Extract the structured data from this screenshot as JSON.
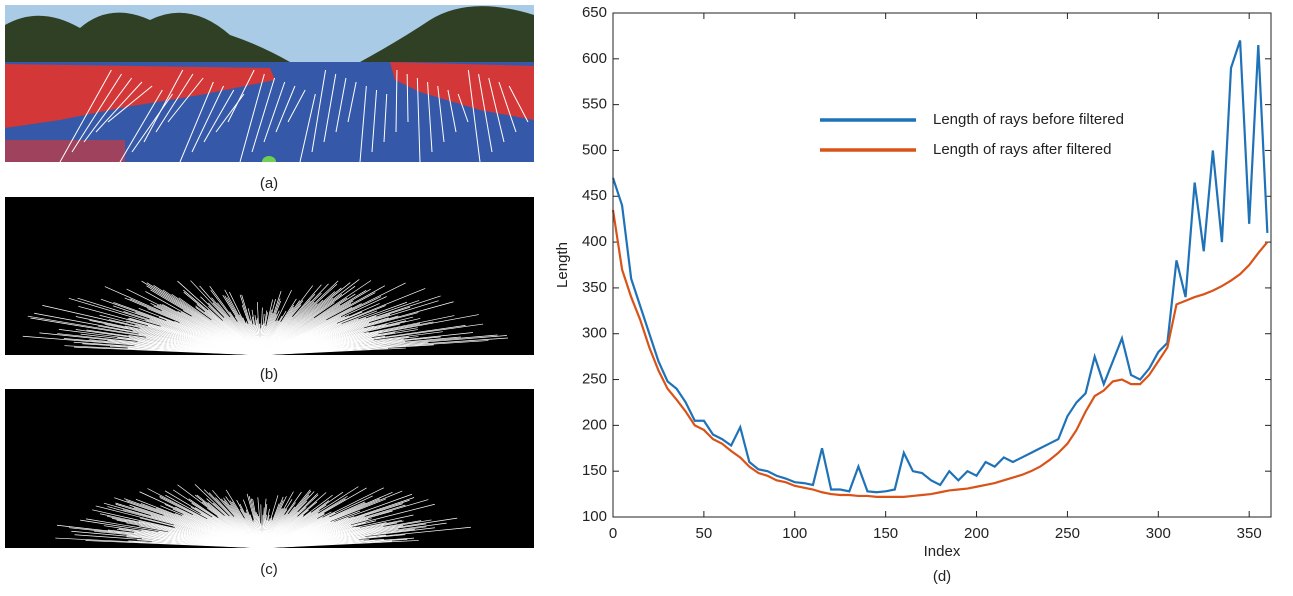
{
  "panels": {
    "a": "(a)",
    "b": "(b)",
    "c": "(c)"
  },
  "chart_data": {
    "type": "line",
    "caption": "(d)",
    "xlabel": "Index",
    "ylabel": "Length",
    "x": [
      0,
      5,
      10,
      15,
      20,
      25,
      30,
      35,
      40,
      45,
      50,
      55,
      60,
      65,
      70,
      75,
      80,
      85,
      90,
      95,
      100,
      105,
      110,
      115,
      120,
      125,
      130,
      135,
      140,
      145,
      150,
      155,
      160,
      165,
      170,
      175,
      180,
      185,
      190,
      195,
      200,
      205,
      210,
      215,
      220,
      225,
      230,
      235,
      240,
      245,
      250,
      255,
      260,
      265,
      270,
      275,
      280,
      285,
      290,
      295,
      300,
      305,
      310,
      315,
      320,
      325,
      330,
      335,
      340,
      345,
      350,
      355,
      360
    ],
    "series": [
      {
        "name": "Length of rays before filtered",
        "color": "#1f72b8",
        "values": [
          470,
          440,
          360,
          330,
          300,
          270,
          248,
          240,
          225,
          205,
          205,
          190,
          185,
          178,
          198,
          160,
          152,
          150,
          145,
          142,
          138,
          137,
          135,
          175,
          130,
          130,
          128,
          155,
          128,
          127,
          128,
          130,
          170,
          150,
          148,
          140,
          135,
          150,
          140,
          150,
          145,
          160,
          155,
          165,
          160,
          165,
          170,
          175,
          180,
          185,
          210,
          225,
          235,
          275,
          245,
          270,
          295,
          255,
          250,
          262,
          280,
          290,
          380,
          340,
          465,
          390,
          500,
          400,
          590,
          620,
          420,
          615,
          410
        ]
      },
      {
        "name": "Length of rays after filtered",
        "color": "#d95319",
        "values": [
          435,
          370,
          340,
          315,
          285,
          260,
          240,
          228,
          215,
          200,
          195,
          185,
          180,
          172,
          165,
          155,
          148,
          145,
          140,
          138,
          134,
          132,
          130,
          127,
          125,
          124,
          124,
          123,
          123,
          122,
          122,
          122,
          122,
          123,
          124,
          125,
          127,
          129,
          130,
          131,
          133,
          135,
          137,
          140,
          143,
          146,
          150,
          155,
          162,
          170,
          180,
          195,
          215,
          232,
          238,
          248,
          250,
          245,
          245,
          255,
          270,
          285,
          332,
          336,
          340,
          343,
          347,
          352,
          358,
          365,
          375,
          388,
          400
        ]
      }
    ],
    "xlim": [
      0,
      362
    ],
    "ylim": [
      100,
      650
    ],
    "xticks": [
      0,
      50,
      100,
      150,
      200,
      250,
      300,
      350
    ],
    "yticks": [
      100,
      150,
      200,
      250,
      300,
      350,
      400,
      450,
      500,
      550,
      600,
      650
    ],
    "legend": "upper center"
  }
}
